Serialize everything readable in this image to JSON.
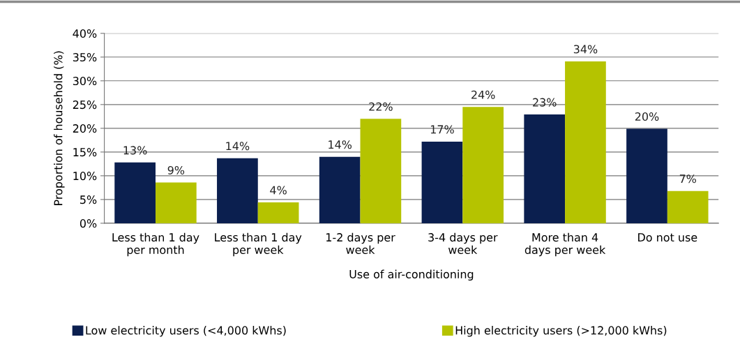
{
  "chart_data": {
    "type": "bar",
    "categories": [
      "Less than 1 day\nper month",
      "Less than 1 day\nper week",
      "1-2 days per\nweek",
      "3-4 days per\nweek",
      "More than 4\ndays per week",
      "Do not use"
    ],
    "series": [
      {
        "name": "Low electricity users (<4,000 kWhs)",
        "color": "#0b1f4f",
        "values": [
          12.8,
          13.7,
          14.0,
          17.2,
          22.9,
          19.9
        ],
        "value_labels": [
          "13%",
          "14%",
          "14%",
          "17%",
          "23%",
          "20%"
        ]
      },
      {
        "name": "High electricity users (>12,000 kWhs)",
        "color": "#b5c300",
        "values": [
          8.6,
          4.4,
          22.0,
          24.5,
          34.1,
          6.8
        ],
        "value_labels": [
          "9%",
          "4%",
          "22%",
          "24%",
          "34%",
          "7%"
        ]
      }
    ],
    "xlabel": "Use of air-conditioning",
    "ylabel": "Proportion of household (%)",
    "ylim": [
      0,
      40
    ],
    "yticks": [
      {
        "value": 0,
        "label": "0%"
      },
      {
        "value": 5,
        "label": "5%"
      },
      {
        "value": 10,
        "label": "10%"
      },
      {
        "value": 15,
        "label": "15%"
      },
      {
        "value": 20,
        "label": "20%"
      },
      {
        "value": 25,
        "label": "25%"
      },
      {
        "value": 30,
        "label": "30%"
      },
      {
        "value": 35,
        "label": "35%"
      },
      {
        "value": 40,
        "label": "40%"
      }
    ],
    "grid": "y",
    "legend": "bottom"
  }
}
